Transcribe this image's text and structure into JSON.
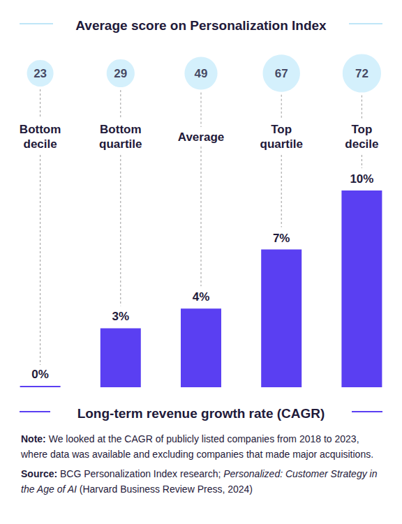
{
  "chart_data": {
    "type": "bar",
    "title": "Average score on Personalization Index",
    "ylabel": "Long-term revenue growth rate (CAGR)",
    "categories": [
      "Bottom decile",
      "Bottom quartile",
      "Average",
      "Top quartile",
      "Top decile"
    ],
    "values": [
      0,
      3,
      4,
      7,
      10
    ],
    "value_labels": [
      "0%",
      "3%",
      "4%",
      "7%",
      "10%"
    ],
    "data_labels": true,
    "color": "#5a3ff2",
    "tick_labels": "x",
    "index_scores": [
      23,
      29,
      49,
      67,
      72
    ],
    "note": {
      "label": "Note:",
      "text": "We looked at the CAGR of publicly listed companies from 2018 to 2023, where data was available and excluding companies that made major acquisitions."
    },
    "source": {
      "label": "Source:",
      "text": "BCG  Personalization Index research;",
      "citation": "Personalized: Customer Strategy in the Age of AI",
      "publisher": "(Harvard Business Review Press, 2024)"
    }
  }
}
